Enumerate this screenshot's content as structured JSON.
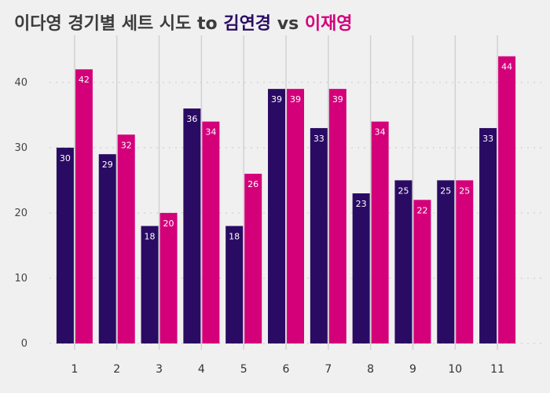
{
  "title": {
    "prefix": "이다영 경기별 세트 시도 to ",
    "player1": "김연경",
    "middle": " vs ",
    "player2": "이재영"
  },
  "colors": {
    "background": "#f0f0f0",
    "series1": "#2a0b63",
    "series2": "#d4007a",
    "grid_horizontal": "#c8c8c8",
    "grid_vertical": "#d2d2d2"
  },
  "chart_data": {
    "type": "bar",
    "title": "이다영 경기별 세트 시도 to 김연경 vs 이재영",
    "xlabel": "",
    "ylabel": "",
    "categories": [
      "1",
      "2",
      "3",
      "4",
      "5",
      "6",
      "7",
      "8",
      "9",
      "10",
      "11"
    ],
    "series": [
      {
        "name": "김연경",
        "values": [
          30,
          29,
          18,
          36,
          18,
          39,
          33,
          23,
          25,
          25,
          33
        ]
      },
      {
        "name": "이재영",
        "values": [
          42,
          32,
          20,
          34,
          26,
          39,
          39,
          34,
          22,
          25,
          44
        ]
      }
    ],
    "ylim": [
      0,
      46
    ],
    "yticks": [
      0,
      10,
      20,
      30,
      40
    ],
    "grid": true,
    "legend": "none",
    "data_labels": true
  }
}
